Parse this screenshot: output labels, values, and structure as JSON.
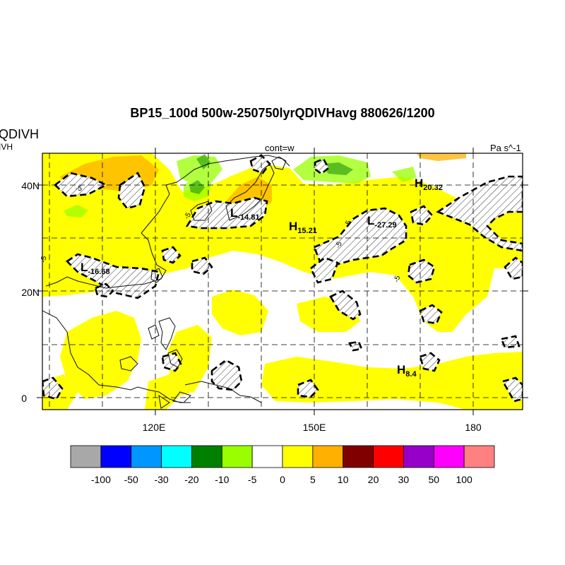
{
  "title": "BP15_100d 500w-250750lyrQDIVHavg  880626/1200",
  "left_title_top": "QDIVH",
  "left_title_sub": "IVH",
  "center_label": "cont=w",
  "units_label": "Pa s^-1",
  "lat_labels": [
    "40N",
    "20N",
    "0"
  ],
  "lon_labels": [
    "120E",
    "150E",
    "180"
  ],
  "contour_label": "-5",
  "centers": [
    {
      "letter": "L",
      "value": "-16.68"
    },
    {
      "letter": "L",
      "value": "-14.81"
    },
    {
      "letter": "H",
      "value": "15.21"
    },
    {
      "letter": "L",
      "value": "-27.29"
    },
    {
      "letter": "H",
      "value": "20.32"
    },
    {
      "letter": "H",
      "value": "8.4"
    }
  ],
  "colorbar": {
    "colors": [
      "#a8a8a8",
      "#0000ff",
      "#0096ff",
      "#00ffff",
      "#008000",
      "#99ff00",
      "#ffffff",
      "#ffff00",
      "#ffb000",
      "#800000",
      "#ff0000",
      "#9600c8",
      "#ff00ff",
      "#ff8080"
    ],
    "labels": [
      "-100",
      "-50",
      "-30",
      "-20",
      "-10",
      "-5",
      "0",
      "5",
      "10",
      "20",
      "30",
      "50",
      "100"
    ]
  }
}
